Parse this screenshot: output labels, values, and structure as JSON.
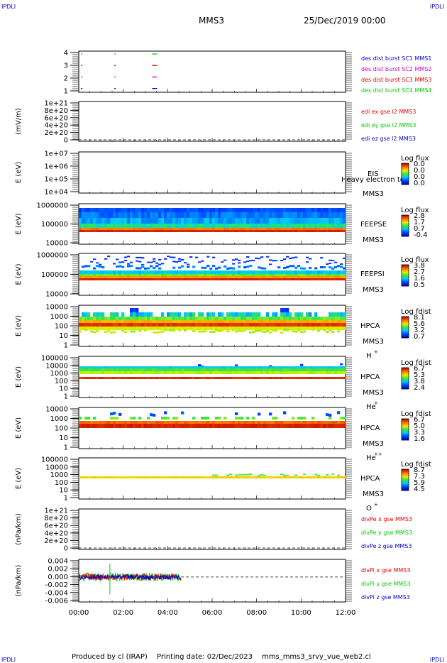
{
  "header": {
    "corner_left": "IPDLI",
    "corner_right": "IPDLI",
    "spacecraft": "MMS3",
    "date": "25/Dec/2019 00:00"
  },
  "footer": {
    "producer": "Produced by cl (IRAP)",
    "printing": "Printing date: 02/Dec/2023",
    "script": "mms_mms3_srvy_vue_web2.cl",
    "corner_left": "IPDLI",
    "corner_right": "IPDLI"
  },
  "chart_data": [
    {
      "type": "scatter",
      "id": "burst",
      "ylabel": "",
      "yticks": [
        "1",
        "2",
        "3",
        "4"
      ],
      "legend": [
        {
          "label": "des dist burst SC1 MMS1",
          "color": "#0000cc"
        },
        {
          "label": "des dist burst SC2 MMS2",
          "color": "#cc00cc"
        },
        {
          "label": "des dist burst SC3 MMS3",
          "color": "#dd0000"
        },
        {
          "label": "des dist burst SC4 MMS4",
          "color": "#00cc00"
        }
      ],
      "marks": [
        {
          "level": 4,
          "t": [
            0.1,
            1.6,
            3.3
          ],
          "color": "#00cc00"
        },
        {
          "level": 3,
          "t": [
            0.1,
            1.6,
            3.3
          ],
          "color": "#dd0000"
        },
        {
          "level": 2,
          "t": [
            0.1,
            1.6,
            3.3
          ],
          "color": "#cc00cc"
        },
        {
          "level": 1,
          "t": [
            0.1,
            1.6,
            3.3
          ],
          "color": "#0000cc"
        }
      ]
    },
    {
      "type": "line",
      "id": "edi",
      "ylabel": "(mV/m)",
      "yticks": [
        "0",
        "2e+20",
        "4e+20",
        "6e+20",
        "8e+20",
        "1e+21"
      ],
      "legend": [
        {
          "label": "edi ex gse l2 MMS3",
          "color": "#dd0000"
        },
        {
          "label": "edi ey gse l2 MMS3",
          "color": "#00cc00"
        },
        {
          "label": "edi ez gse l2 MMS3",
          "color": "#0000cc"
        }
      ]
    },
    {
      "type": "heatmap",
      "id": "eis",
      "ylabel": "E (eV)",
      "yticks": [
        "1e+04",
        "1e+05",
        "1e+06",
        "1e+07"
      ],
      "instrument": "EIS",
      "sc": "MMS3",
      "overlay": "Heavy electron tof",
      "cbar_title": "Log flux",
      "cbar_ticks": [
        "0.0",
        "0.0",
        "0.0",
        "0.0"
      ]
    },
    {
      "type": "heatmap",
      "id": "feepse",
      "ylabel": "E (eV)",
      "yticks": [
        "10000",
        "100000",
        "1000000"
      ],
      "instrument": "FEEPSE",
      "sc": "MMS3",
      "cbar_title": "Log flux",
      "cbar_ticks": [
        "2.8",
        "1.7",
        "0.7",
        "-0.4"
      ]
    },
    {
      "type": "heatmap",
      "id": "feepsi",
      "ylabel": "E (eV)",
      "yticks": [
        "10000",
        "100000",
        "1000000"
      ],
      "instrument": "FEEPSI",
      "sc": "MMS3",
      "cbar_title": "Log flux",
      "cbar_ticks": [
        "3.8",
        "2.7",
        "1.6",
        "0.5"
      ]
    },
    {
      "type": "heatmap",
      "id": "hpca_h",
      "ylabel": "E (eV)",
      "yticks": [
        "1",
        "10",
        "100",
        "1000",
        "10000"
      ],
      "instrument": "HPCA",
      "sc": "MMS3",
      "species": "H",
      "charge": "+",
      "cbar_title": "Log fdist",
      "cbar_ticks": [
        "8.1",
        "5.6",
        "3.2",
        "0.7"
      ]
    },
    {
      "type": "heatmap",
      "id": "hpca_he",
      "ylabel": "E (eV)",
      "yticks": [
        "1",
        "10",
        "100",
        "1000",
        "10000",
        "100000"
      ],
      "instrument": "HPCA",
      "sc": "MMS3",
      "species": "He",
      "charge": "+",
      "cbar_title": "Log fdist",
      "cbar_ticks": [
        "6.7",
        "5.3",
        "3.8",
        "2.4"
      ]
    },
    {
      "type": "heatmap",
      "id": "hpca_hepp",
      "ylabel": "E (eV)",
      "yticks": [
        "1",
        "10",
        "100",
        "1000",
        "10000"
      ],
      "instrument": "HPCA",
      "sc": "MMS3",
      "species": "He",
      "charge": "++",
      "cbar_title": "Log fdist",
      "cbar_ticks": [
        "6.7",
        "5.0",
        "3.3",
        "1.6"
      ]
    },
    {
      "type": "heatmap",
      "id": "hpca_o",
      "ylabel": "E (eV)",
      "yticks": [
        "1",
        "10",
        "100",
        "1000",
        "10000",
        "100000"
      ],
      "instrument": "HPCA",
      "sc": "MMS3",
      "species": "O",
      "charge": "+",
      "cbar_title": "Log fdist",
      "cbar_ticks": [
        "8.7",
        "7.3",
        "5.9",
        "4.5"
      ]
    },
    {
      "type": "line",
      "id": "divpe",
      "ylabel": "(nPa/km)",
      "yticks": [
        "0",
        "2e+20",
        "4e+20",
        "6e+20",
        "8e+20",
        "1e+21"
      ],
      "legend": [
        {
          "label": "divPe x gse MMS3",
          "color": "#dd0000"
        },
        {
          "label": "divPe y gse MMS3",
          "color": "#00cc00"
        },
        {
          "label": "divPe z gse MMS3",
          "color": "#0000cc"
        }
      ]
    },
    {
      "type": "line",
      "id": "divpi",
      "ylabel": "(nPa/km)",
      "yticks": [
        "-0.006",
        "-0.004",
        "-0.002",
        "0.000",
        "0.002",
        "0.004"
      ],
      "ylim": [
        -0.0065,
        0.0045
      ],
      "legend": [
        {
          "label": "divPi x gse MMS3",
          "color": "#dd0000"
        },
        {
          "label": "divPi y gse MMS3",
          "color": "#00cc00"
        },
        {
          "label": "divPi z gse MMS3",
          "color": "#0000cc"
        }
      ],
      "data_end_hour": 4.6
    }
  ],
  "time_axis": {
    "ticks": [
      "00:00",
      "02:00",
      "04:00",
      "06:00",
      "08:00",
      "10:00",
      "12:00"
    ],
    "range_hours": [
      0,
      12
    ]
  }
}
